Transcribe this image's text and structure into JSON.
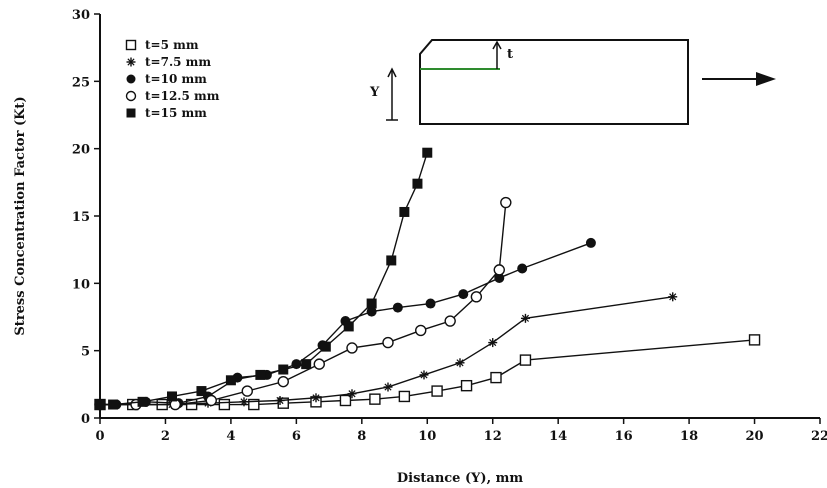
{
  "chart_data": {
    "type": "line",
    "xlabel": "Distance (Y), mm",
    "ylabel": "Stress Concentration Factor (Kt)",
    "xlim": [
      0,
      22
    ],
    "ylim": [
      0,
      30
    ],
    "x_ticks": [
      "0",
      "2",
      "4",
      "6",
      "8",
      "10",
      "12",
      "14",
      "16",
      "18",
      "20",
      "22"
    ],
    "y_ticks": [
      "0",
      "5",
      "10",
      "15",
      "20",
      "25",
      "30"
    ],
    "grid": false,
    "legend_position": "top-left",
    "series": [
      {
        "name": "t=5 mm",
        "marker": "open-square",
        "color": "#111111",
        "x": [
          0,
          1,
          1.9,
          2.8,
          3.8,
          4.7,
          5.6,
          6.6,
          7.5,
          8.4,
          9.3,
          10.3,
          11.2,
          12.1,
          13,
          20
        ],
        "y": [
          1,
          1,
          1,
          1,
          1,
          1,
          1.1,
          1.2,
          1.3,
          1.4,
          1.6,
          2,
          2.4,
          3,
          4.3,
          5.8
        ]
      },
      {
        "name": "t=7.5 mm",
        "marker": "star",
        "color": "#111111",
        "x": [
          0,
          1.1,
          2.2,
          3.3,
          4.4,
          5.5,
          6.6,
          7.7,
          8.8,
          9.9,
          11,
          12,
          13,
          17.5
        ],
        "y": [
          1,
          1,
          1,
          1.1,
          1.2,
          1.3,
          1.5,
          1.8,
          2.3,
          3.2,
          4.1,
          5.6,
          7.4,
          9
        ]
      },
      {
        "name": "t=10 mm",
        "marker": "filled-circle",
        "color": "#111111",
        "x": [
          0,
          0.5,
          1.4,
          2.4,
          3.3,
          4.2,
          5.1,
          6,
          6.8,
          7.5,
          8.3,
          9.1,
          10.1,
          11.1,
          12.2,
          12.9,
          15
        ],
        "y": [
          1,
          1,
          1.2,
          1.1,
          1.6,
          3,
          3.2,
          4,
          5.4,
          7.2,
          7.9,
          8.2,
          8.5,
          9.2,
          10.4,
          11.1,
          13
        ]
      },
      {
        "name": "t=12.5 mm",
        "marker": "open-circle",
        "color": "#111111",
        "x": [
          0,
          1.1,
          2.3,
          3.4,
          4.5,
          5.6,
          6.7,
          7.7,
          8.8,
          9.8,
          10.7,
          11.5,
          12.2,
          12.4
        ],
        "y": [
          1,
          1,
          1,
          1.3,
          2,
          2.7,
          4,
          5.2,
          5.6,
          6.5,
          7.2,
          9,
          11,
          16
        ]
      },
      {
        "name": "t=15 mm",
        "marker": "filled-square",
        "color": "#111111",
        "x": [
          0,
          0.4,
          1.3,
          2.2,
          3.1,
          4,
          4.9,
          5.6,
          6.3,
          6.9,
          7.6,
          8.3,
          8.9,
          9.3,
          9.7,
          10
        ],
        "y": [
          1,
          1,
          1.2,
          1.6,
          2,
          2.8,
          3.2,
          3.6,
          4,
          5.3,
          6.8,
          8.5,
          11.7,
          15.3,
          17.4,
          19.7
        ]
      }
    ]
  },
  "inset": {
    "y_label": "Y",
    "t_label": "t"
  }
}
